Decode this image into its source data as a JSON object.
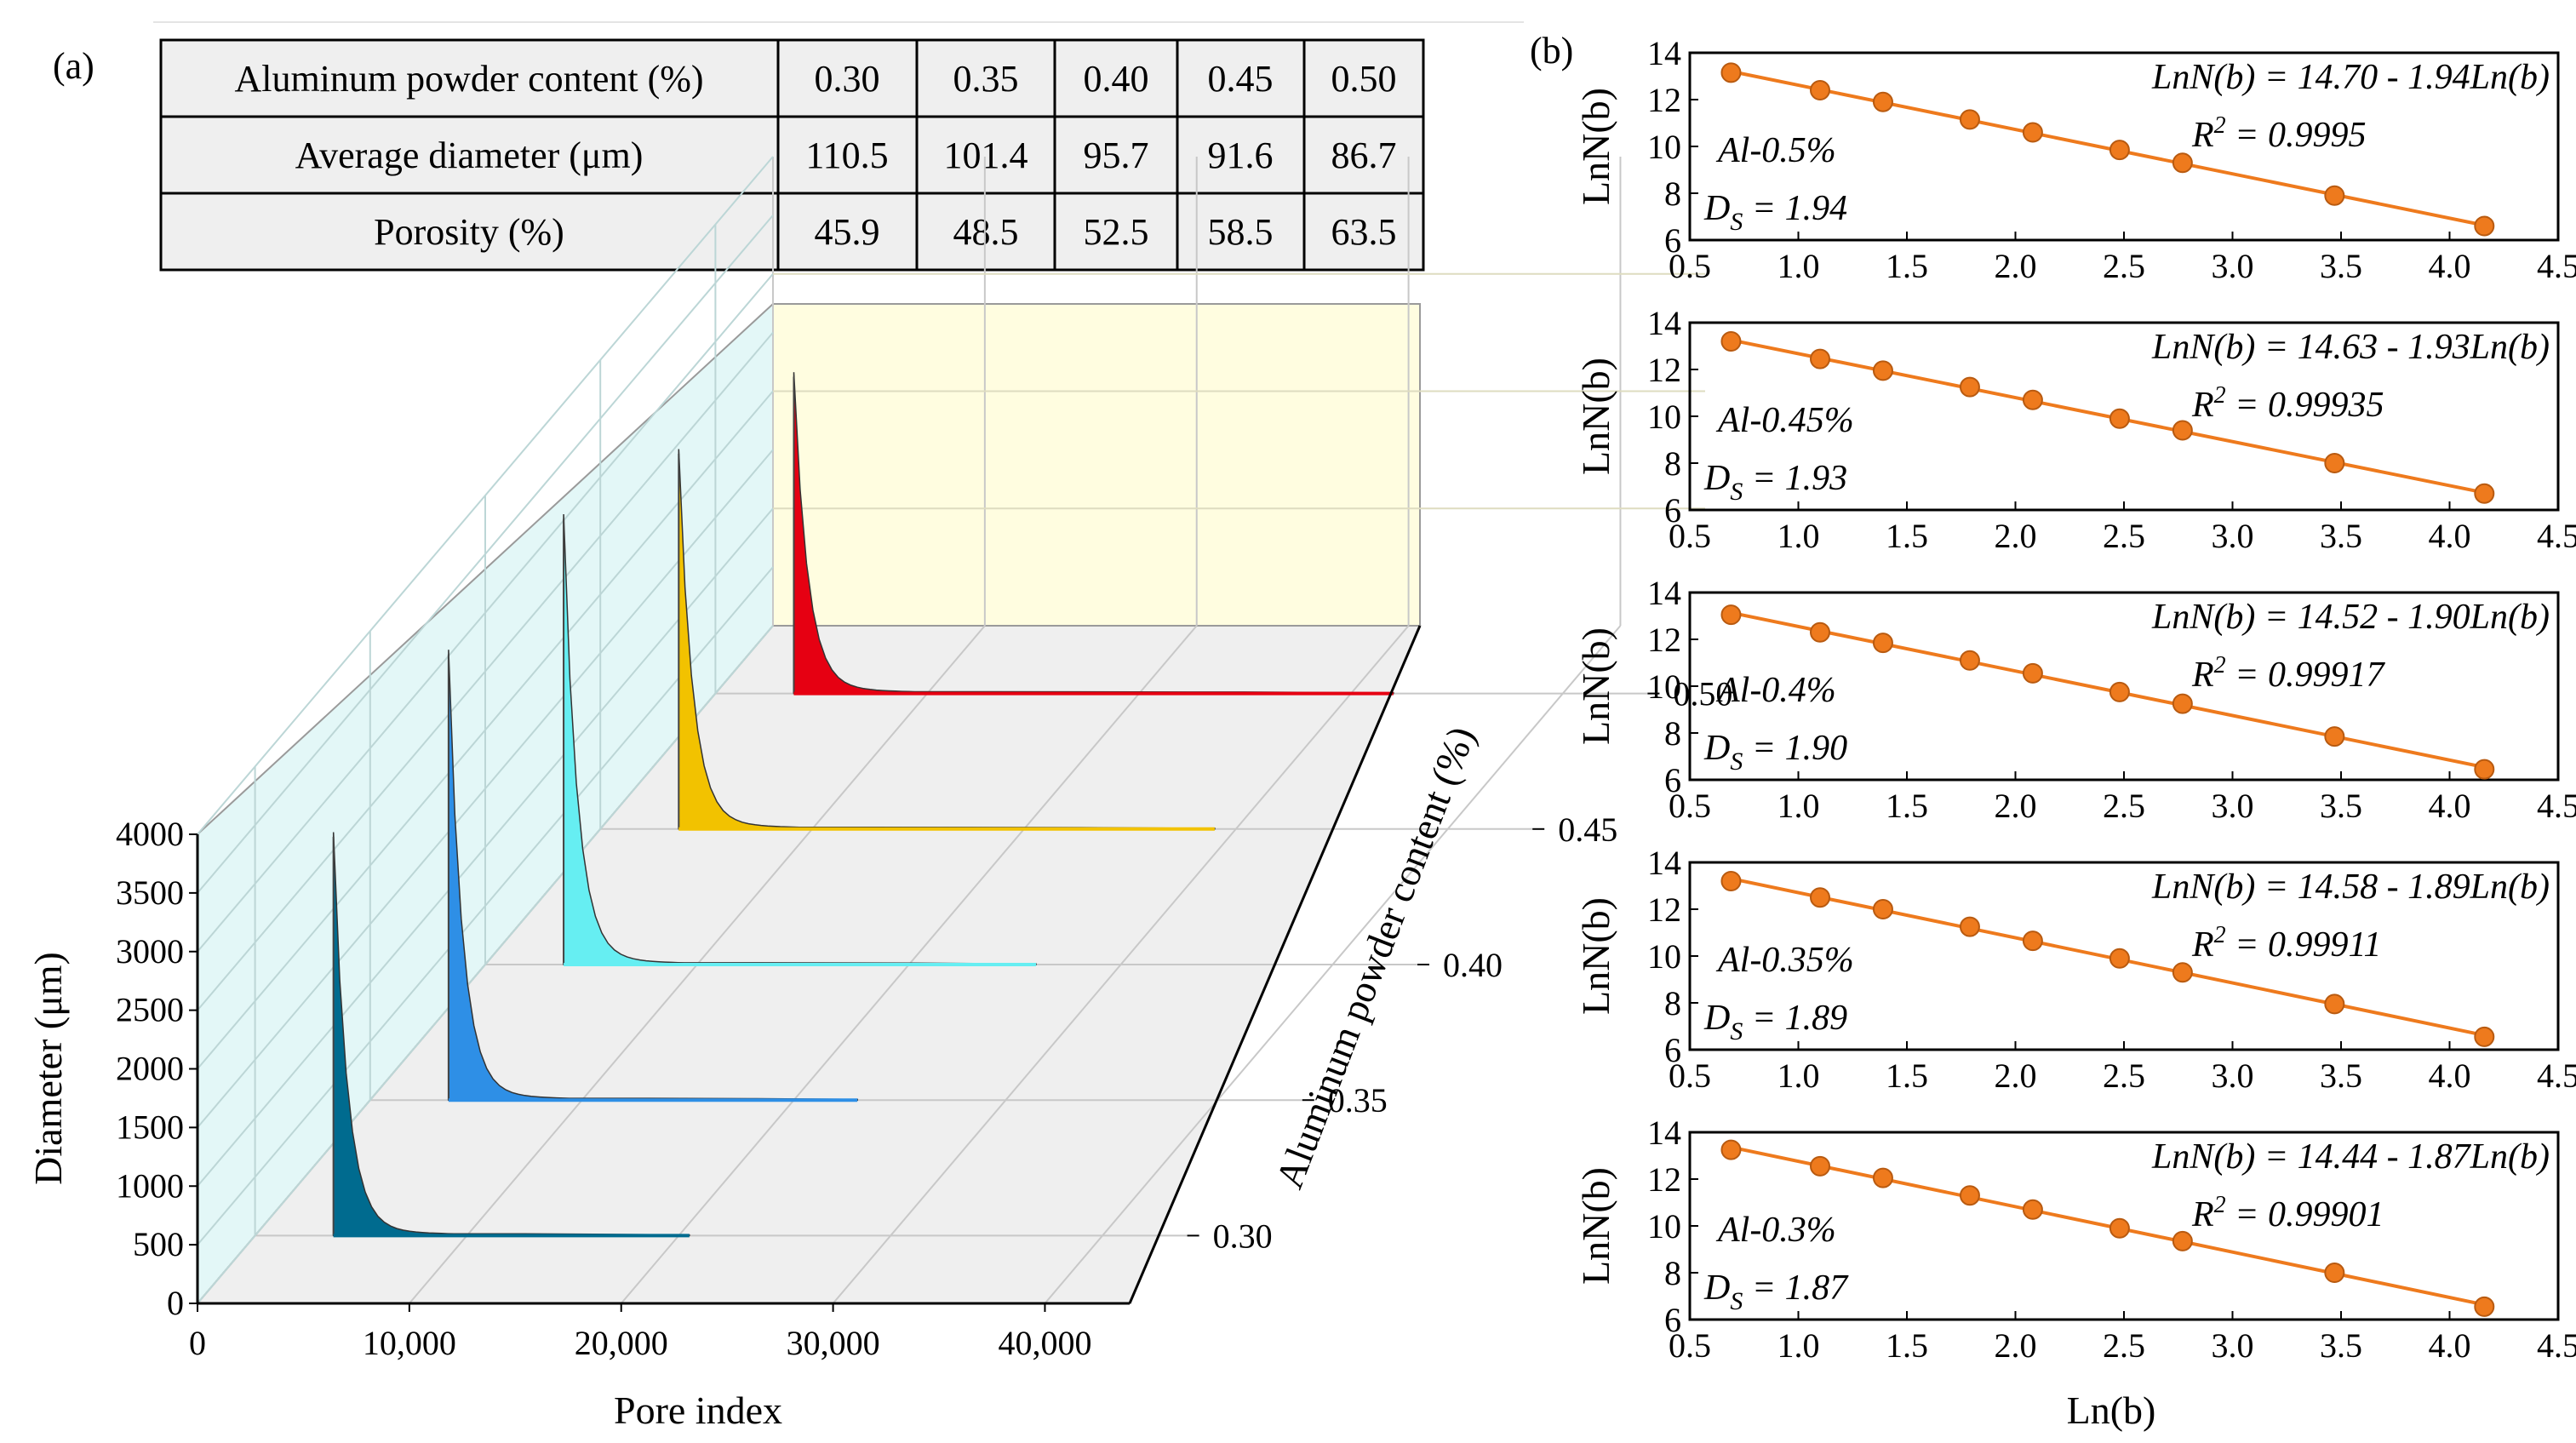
{
  "panel_a": {
    "label": "(a)",
    "table": {
      "rows": [
        {
          "header": "Aluminum powder content (%)",
          "values": [
            "0.30",
            "0.35",
            "0.40",
            "0.45",
            "0.50"
          ]
        },
        {
          "header": "Average diameter (μm)",
          "values": [
            "110.5",
            "101.4",
            "95.7",
            "91.6",
            "86.7"
          ]
        },
        {
          "header": "Porosity (%)",
          "values": [
            "45.9",
            "48.5",
            "52.5",
            "58.5",
            "63.5"
          ]
        }
      ]
    }
  },
  "panel_b": {
    "label": "(b)"
  },
  "chart_data": [
    {
      "type": "area",
      "view": "3d-waterfall",
      "xlabel": "Pore index",
      "ylabel": "Diameter (μm)",
      "zlabel": "Aluminum powder content (%)",
      "x_ticks": [
        "0",
        "10,000",
        "20,000",
        "30,000",
        "40,000"
      ],
      "y_ticks": [
        "0",
        "500",
        "1000",
        "1500",
        "2000",
        "2500",
        "3000",
        "3500",
        "4000"
      ],
      "z_ticks": [
        "0.30",
        "0.35",
        "0.40",
        "0.45",
        "0.50"
      ],
      "xlim": [
        0,
        44000
      ],
      "ylim": [
        0,
        4000
      ],
      "grid": true,
      "series": [
        {
          "z": 0.3,
          "color": "#006b8f",
          "peak": 3400,
          "max_pore_index": 20500
        },
        {
          "z": 0.35,
          "color": "#2e8fe6",
          "peak": 3800,
          "max_pore_index": 23000
        },
        {
          "z": 0.4,
          "color": "#66eef2",
          "peak": 3800,
          "max_pore_index": 26000
        },
        {
          "z": 0.45,
          "color": "#f2c200",
          "peak": 3200,
          "max_pore_index": 29000
        },
        {
          "z": 0.5,
          "color": "#e60012",
          "peak": 2700,
          "max_pore_index": 32000
        }
      ]
    },
    {
      "type": "scatter",
      "xlabel": "Ln(b)",
      "ylabel": "LnN(b)",
      "xlim": [
        0.5,
        4.5
      ],
      "ylim": [
        6,
        14
      ],
      "x_ticks": [
        "0.5",
        "1.0",
        "1.5",
        "2.0",
        "2.5",
        "3.0",
        "3.5",
        "4.0",
        "4.5"
      ],
      "y_ticks": [
        "6",
        "8",
        "10",
        "12",
        "14"
      ],
      "color": "#ee7a1d",
      "panels": [
        {
          "label": "Al-0.5%",
          "ds_value": "1.94",
          "equation": "LnN(b) = 14.70 - 1.94Ln(b)",
          "r2_value": "0.9995",
          "x": [
            0.69,
            1.1,
            1.39,
            1.79,
            2.08,
            2.48,
            2.77,
            3.47,
            4.16
          ],
          "y": [
            13.15,
            12.4,
            11.9,
            11.15,
            10.6,
            9.85,
            9.3,
            7.9,
            6.6
          ]
        },
        {
          "label": "Al-0.45%",
          "ds_value": "1.93",
          "equation": "LnN(b) = 14.63 - 1.93Ln(b)",
          "r2_value": "0.99935",
          "x": [
            0.69,
            1.1,
            1.39,
            1.79,
            2.08,
            2.48,
            2.77,
            3.47,
            4.16
          ],
          "y": [
            13.2,
            12.45,
            11.95,
            11.25,
            10.7,
            9.9,
            9.4,
            8.0,
            6.7
          ]
        },
        {
          "label": "Al-0.4%",
          "ds_value": "1.90",
          "equation": "LnN(b) = 14.52 - 1.90Ln(b)",
          "r2_value": "0.99917",
          "x": [
            0.69,
            1.1,
            1.39,
            1.79,
            2.08,
            2.48,
            2.77,
            3.47,
            4.16
          ],
          "y": [
            13.05,
            12.3,
            11.85,
            11.1,
            10.55,
            9.75,
            9.25,
            7.85,
            6.45
          ]
        },
        {
          "label": "Al-0.35%",
          "ds_value": "1.89",
          "equation": "LnN(b) = 14.58 - 1.89Ln(b)",
          "r2_value": "0.99911",
          "x": [
            0.69,
            1.1,
            1.39,
            1.79,
            2.08,
            2.48,
            2.77,
            3.47,
            4.16
          ],
          "y": [
            13.2,
            12.5,
            12.0,
            11.25,
            10.65,
            9.9,
            9.3,
            7.95,
            6.55
          ]
        },
        {
          "label": "Al-0.3%",
          "ds_value": "1.87",
          "equation": "LnN(b) = 14.44 - 1.87Ln(b)",
          "r2_value": "0.99901",
          "x": [
            0.69,
            1.1,
            1.39,
            1.79,
            2.08,
            2.48,
            2.77,
            3.47,
            4.16
          ],
          "y": [
            13.25,
            12.55,
            12.05,
            11.3,
            10.7,
            9.9,
            9.35,
            8.0,
            6.55
          ]
        }
      ]
    }
  ]
}
